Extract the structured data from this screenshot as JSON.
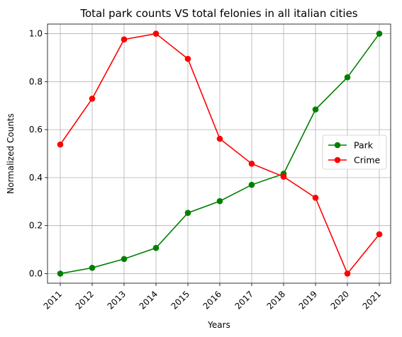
{
  "chart_data": {
    "type": "line",
    "title": "Total park counts VS total felonies in all italian cities",
    "xlabel": "Years",
    "ylabel": "Normalized Counts",
    "categories": [
      "2011",
      "2012",
      "2013",
      "2014",
      "2015",
      "2016",
      "2017",
      "2018",
      "2019",
      "2020",
      "2021"
    ],
    "ylim": [
      -0.04,
      1.04
    ],
    "yticks": [
      "0.0",
      "0.2",
      "0.4",
      "0.6",
      "0.8",
      "1.0"
    ],
    "grid": true,
    "legend_position": "center-right",
    "series": [
      {
        "name": "Park",
        "color": "#008000",
        "values": [
          0.0,
          0.024,
          0.061,
          0.107,
          0.253,
          0.302,
          0.37,
          0.416,
          0.684,
          0.818,
          1.0
        ]
      },
      {
        "name": "Crime",
        "color": "#ff0000",
        "values": [
          0.538,
          0.729,
          0.976,
          1.0,
          0.895,
          0.562,
          0.458,
          0.404,
          0.316,
          0.0,
          0.164
        ]
      }
    ]
  }
}
